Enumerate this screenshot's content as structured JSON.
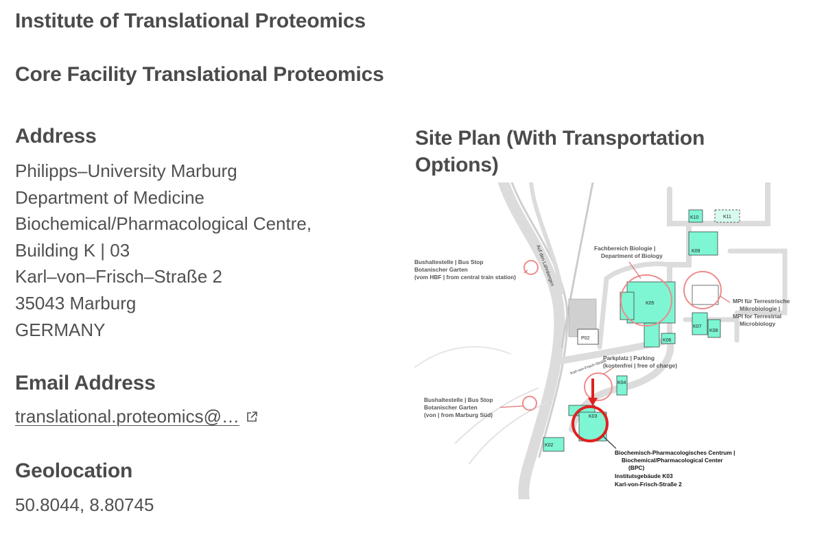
{
  "institute_title": "Institute of Translational Proteomics",
  "facility_title": "Core Facility Translational Proteomics",
  "address": {
    "heading": "Address",
    "lines": [
      "Philipps–University Marburg",
      "Department of Medicine",
      "Biochemical/Pharmacological Centre,",
      "Building K | 03",
      "Karl–von–Frisch–Straße 2",
      "35043 Marburg",
      "GERMANY"
    ]
  },
  "email": {
    "heading": "Email Address",
    "link_text": "translational.proteomics@…",
    "icon": "external-link-icon"
  },
  "geolocation": {
    "heading": "Geolocation",
    "value": "50.8044, 8.80745"
  },
  "site_plan": {
    "heading": "Site Plan (With Transportation Options)",
    "colors": {
      "building": "#7ef5d3",
      "marker": "#e02020",
      "road": "#d9d9d9"
    },
    "labels": {
      "bus_stop_1": [
        "Bushaltestelle | Bus Stop",
        "Botanischer Garten",
        "(vom HBF | from central train station)"
      ],
      "bus_stop_2": [
        "Bushaltestelle | Bus Stop",
        "Botanischer Garten",
        "(von | from Marburg Süd)"
      ],
      "biology": [
        "Fachbereich Biologie |",
        "Department of Biology"
      ],
      "mpi": [
        "MPI für Terrestrische",
        "Mikrobiologie |",
        "MPI for Terrestrial",
        "Microbiology"
      ],
      "parking": [
        "Parkplatz | Parking",
        "(kostenfrei | free of charge)"
      ],
      "bpc": [
        "Biochemisch-Pharmacologisches Centrum |",
        "Biochemical/Pharmacological Center",
        "(BPC)",
        "Institutsgebäude K03",
        "Karl-von-Frisch-Straße 2"
      ],
      "road_1": "Auf den Lahnbergen",
      "road_2": "Karl-von-Frisch-Straße",
      "buildings": [
        "K10",
        "K11",
        "K09",
        "K05",
        "K07",
        "K08",
        "K06",
        "P02",
        "K04",
        "K03",
        "K02"
      ]
    }
  }
}
